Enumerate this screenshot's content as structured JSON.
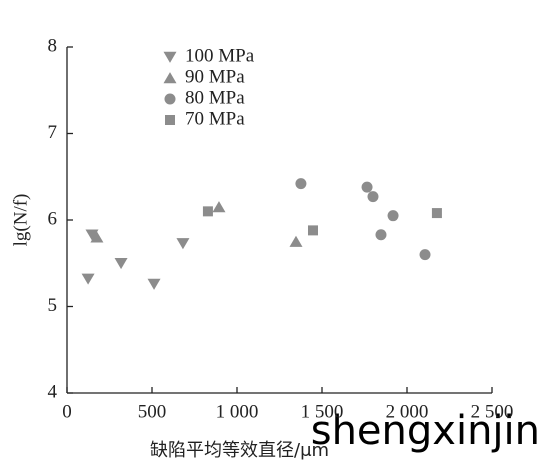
{
  "chart_data": {
    "type": "scatter",
    "xlabel": "缺陷平均等效直径/μm",
    "ylabel": "lg(N/f)",
    "watermark": "shengxinjin",
    "xlim": [
      0,
      2500
    ],
    "ylim": [
      4,
      8
    ],
    "xticks": [
      0,
      500,
      {
        "value": 1000,
        "label": "1 000"
      },
      {
        "value": 1500,
        "label": "1 500"
      },
      {
        "value": 2000,
        "label": "2 000"
      },
      {
        "value": 2500,
        "label": "2 500"
      }
    ],
    "yticks": [
      4,
      5,
      6,
      7,
      8
    ],
    "legend": "upper left",
    "series": [
      {
        "name": "100 MPa",
        "color": "#8c8c8c",
        "marker": "triangle-down",
        "x": [
          124,
          147,
          318,
          512,
          682
        ],
        "values": [
          5.32,
          5.83,
          5.5,
          5.26,
          5.73
        ]
      },
      {
        "name": "90 MPa",
        "color": "#8c8c8c",
        "marker": "triangle-up",
        "x": [
          176,
          894,
          1347
        ],
        "values": [
          5.8,
          6.15,
          5.75
        ]
      },
      {
        "name": "80 MPa",
        "color": "#8c8c8c",
        "marker": "circle",
        "x": [
          1376,
          1765,
          1800,
          1918,
          1847,
          2106
        ],
        "values": [
          6.42,
          6.38,
          6.27,
          6.05,
          5.83,
          5.6
        ]
      },
      {
        "name": "70 MPa",
        "color": "#8c8c8c",
        "marker": "square",
        "x": [
          829,
          1447,
          2176
        ],
        "values": [
          6.1,
          5.88,
          6.08
        ]
      }
    ]
  }
}
